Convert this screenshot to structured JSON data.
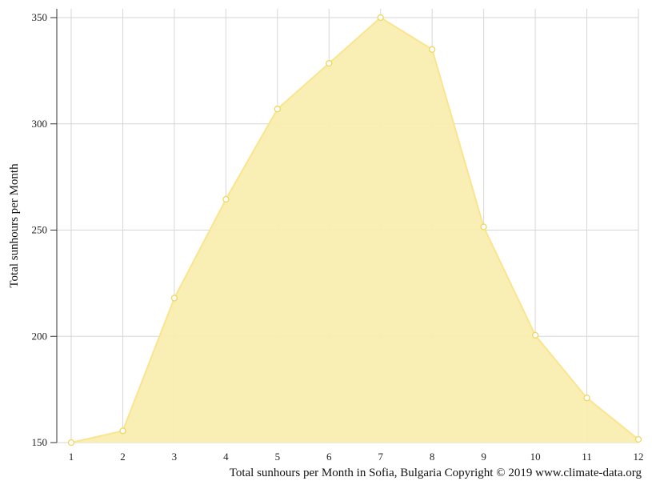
{
  "chart_data": {
    "type": "area",
    "caption": "Total sunhours per Month in Sofia, Bulgaria Copyright © 2019 www.climate-data.org",
    "ylabel": "Total sunhours per Month",
    "xlabel": "",
    "x": [
      1,
      2,
      3,
      4,
      5,
      6,
      7,
      8,
      9,
      10,
      11,
      12
    ],
    "x_tick_labels": [
      "1",
      "2",
      "3",
      "4",
      "5",
      "6",
      "7",
      "8",
      "9",
      "10",
      "11",
      "12"
    ],
    "values": [
      150,
      155.5,
      218,
      264.5,
      307,
      328.5,
      350,
      335,
      251.5,
      200.5,
      171,
      151.5
    ],
    "ylim": [
      150,
      353
    ],
    "y_ticks": [
      150,
      200,
      250,
      300,
      350
    ],
    "y_tick_labels": [
      "150",
      "200",
      "250",
      "300",
      "350"
    ],
    "grid": true,
    "colors": {
      "fill": "#f9eeb0",
      "line": "#fae58e",
      "marker_stroke": "#f0d65a",
      "grid": "#d6d6d6",
      "axis": "#333333"
    }
  }
}
